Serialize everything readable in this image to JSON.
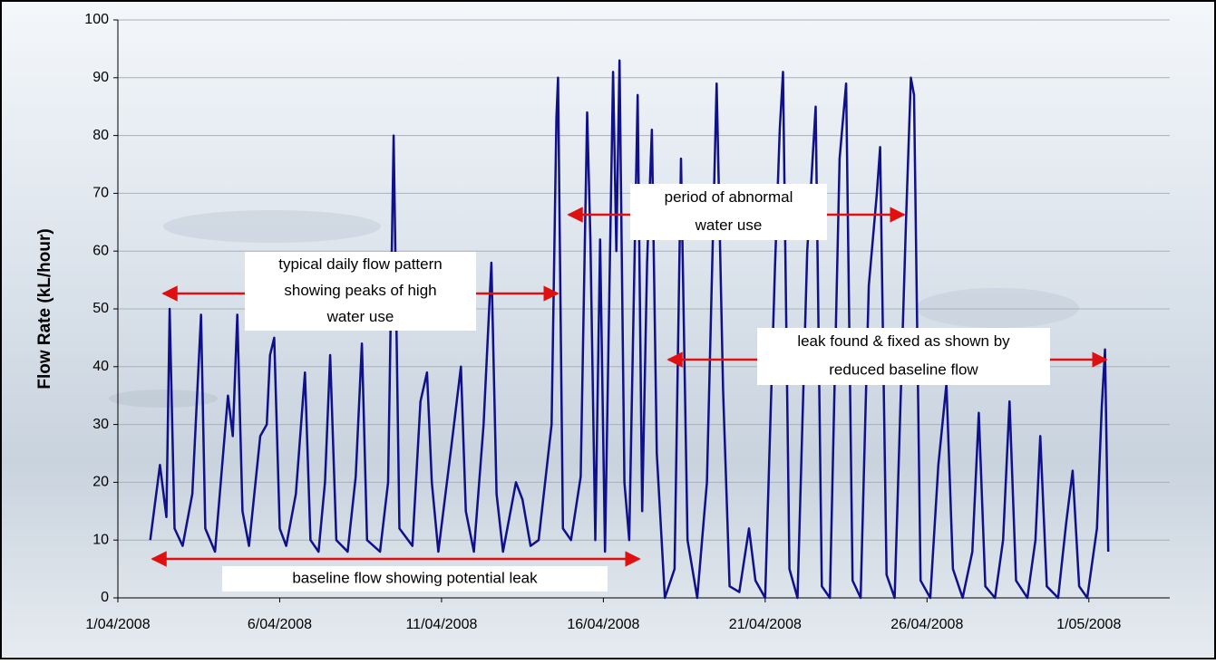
{
  "chart_data": {
    "type": "line",
    "y_label": "Flow Rate (kL/hour)",
    "xlim": [
      0,
      32.5
    ],
    "ylim": [
      0,
      100
    ],
    "xticks": [
      {
        "value": 0,
        "label": "1/04/2008"
      },
      {
        "value": 5,
        "label": "6/04/2008"
      },
      {
        "value": 10,
        "label": "11/04/2008"
      },
      {
        "value": 15,
        "label": "16/04/2008"
      },
      {
        "value": 20,
        "label": "21/04/2008"
      },
      {
        "value": 25,
        "label": "26/04/2008"
      },
      {
        "value": 30,
        "label": "1/05/2008"
      }
    ],
    "yticks": [
      0,
      10,
      20,
      30,
      40,
      50,
      60,
      70,
      80,
      90,
      100
    ],
    "grid": true,
    "series": [
      {
        "color": "#10108a",
        "x": [
          1.0,
          1.3,
          1.5,
          1.6,
          1.75,
          2.0,
          2.3,
          2.57,
          2.7,
          3.0,
          3.4,
          3.55,
          3.69,
          3.85,
          4.05,
          4.4,
          4.6,
          4.7,
          4.83,
          5.0,
          5.2,
          5.5,
          5.78,
          5.95,
          6.2,
          6.4,
          6.56,
          6.75,
          7.1,
          7.35,
          7.54,
          7.7,
          8.1,
          8.35,
          8.52,
          8.7,
          9.1,
          9.35,
          9.55,
          9.7,
          9.9,
          10.3,
          10.6,
          10.75,
          11.0,
          11.3,
          11.54,
          11.7,
          11.9,
          12.3,
          12.5,
          12.75,
          13.0,
          13.4,
          13.55,
          13.6,
          13.75,
          14.0,
          14.3,
          14.5,
          14.6,
          14.75,
          14.9,
          15.05,
          15.3,
          15.4,
          15.5,
          15.65,
          15.8,
          16.06,
          16.2,
          16.35,
          16.5,
          16.65,
          16.9,
          17.2,
          17.4,
          17.6,
          17.9,
          18.2,
          18.5,
          18.7,
          18.9,
          19.2,
          19.5,
          19.7,
          20.0,
          20.3,
          20.45,
          20.55,
          20.75,
          21.0,
          21.3,
          21.56,
          21.75,
          22.0,
          22.3,
          22.5,
          22.7,
          22.95,
          23.2,
          23.45,
          23.55,
          23.75,
          24.0,
          24.35,
          24.5,
          24.6,
          24.8,
          25.1,
          25.35,
          25.6,
          25.8,
          26.1,
          26.4,
          26.6,
          26.8,
          27.1,
          27.35,
          27.55,
          27.75,
          28.1,
          28.35,
          28.5,
          28.7,
          29.05,
          29.3,
          29.5,
          29.7,
          29.95,
          30.25,
          30.4,
          30.5,
          30.6
        ],
        "values": [
          10,
          23,
          14,
          50,
          12,
          9,
          18,
          49,
          12,
          8,
          35,
          28,
          49,
          15,
          9,
          28,
          30,
          42,
          45,
          12,
          9,
          18,
          39,
          10,
          8,
          20,
          42,
          10,
          8,
          21,
          44,
          10,
          8,
          20,
          80,
          12,
          9,
          34,
          39,
          20,
          8,
          26,
          40,
          15,
          8,
          30,
          58,
          18,
          8,
          20,
          17,
          9,
          10,
          30,
          83,
          90,
          12,
          10,
          21,
          84,
          62,
          10,
          62,
          8,
          91,
          60,
          93,
          20,
          10,
          87,
          15,
          58,
          81,
          25,
          0,
          5,
          76,
          10,
          0,
          20,
          89,
          36,
          2,
          1,
          12,
          3,
          0,
          57,
          81,
          91,
          5,
          0,
          60,
          85,
          2,
          0,
          76,
          89,
          3,
          0,
          54,
          70,
          78,
          4,
          0,
          65,
          90,
          87,
          3,
          0,
          23,
          37,
          5,
          0,
          8,
          32,
          2,
          0,
          10,
          34,
          3,
          0,
          10,
          28,
          2,
          0,
          13,
          22,
          2,
          0,
          12,
          33,
          43,
          8
        ]
      }
    ],
    "annotations": [
      {
        "lines": [
          "typical daily flow pattern",
          "showing peaks of high",
          "water use"
        ]
      },
      {
        "lines": [
          "period of abnormal",
          "water use"
        ]
      },
      {
        "lines": [
          "leak found & fixed as shown by",
          "reduced baseline flow"
        ]
      },
      {
        "lines": [
          "baseline flow showing potential leak"
        ]
      }
    ]
  }
}
